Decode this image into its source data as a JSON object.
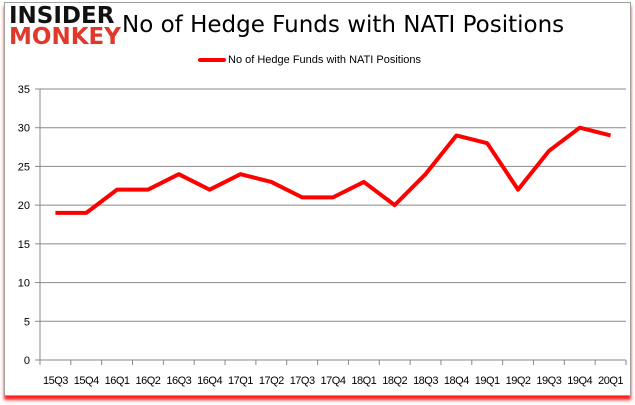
{
  "logo": {
    "line1": "INSIDER",
    "line2": "MONKEY"
  },
  "chart_data": {
    "type": "line",
    "title": "No of Hedge Funds with NATI Positions",
    "categories": [
      "15Q3",
      "15Q4",
      "16Q1",
      "16Q2",
      "16Q3",
      "16Q4",
      "17Q1",
      "17Q2",
      "17Q3",
      "17Q4",
      "18Q1",
      "18Q2",
      "18Q3",
      "18Q4",
      "19Q1",
      "19Q2",
      "19Q3",
      "19Q4",
      "20Q1"
    ],
    "series": [
      {
        "name": "No of Hedge Funds with NATI Positions",
        "values": [
          19,
          19,
          22,
          22,
          24,
          22,
          24,
          23,
          21,
          21,
          23,
          20,
          24,
          29,
          28,
          22,
          27,
          30,
          29
        ],
        "color": "#ff0000"
      }
    ],
    "ylim": [
      0,
      35
    ],
    "yticks": [
      0,
      5,
      10,
      15,
      20,
      25,
      30,
      35
    ],
    "grid": true,
    "legend": "top"
  }
}
